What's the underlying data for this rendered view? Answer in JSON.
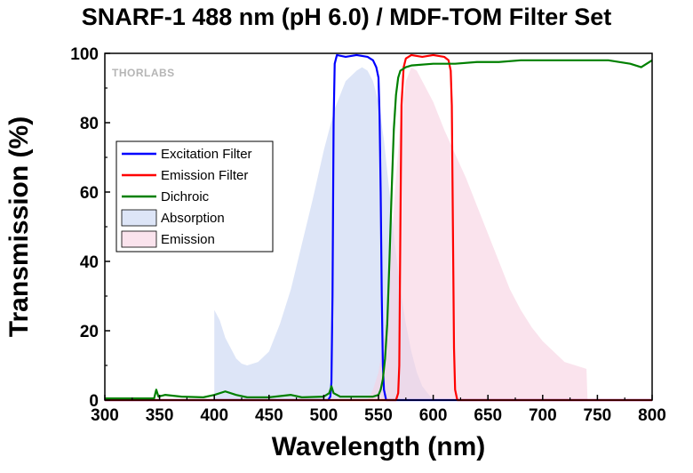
{
  "chart_data": {
    "type": "line",
    "title": "SNARF-1 488 nm (pH 6.0) / MDF-TOM Filter Set",
    "xlabel": "Wavelength (nm)",
    "ylabel": "Transmission (%)",
    "xlim": [
      300,
      800
    ],
    "ylim": [
      0,
      100
    ],
    "xticks": [
      300,
      350,
      400,
      450,
      500,
      550,
      600,
      650,
      700,
      750,
      800
    ],
    "yticks": [
      0,
      20,
      40,
      60,
      80,
      100
    ],
    "grid": false,
    "legend_position": "left-middle",
    "logo_text": "THORLABS",
    "series": [
      {
        "name": "Excitation Filter",
        "kind": "line",
        "color": "#0000ff",
        "points": [
          [
            300,
            0
          ],
          [
            504,
            0
          ],
          [
            506,
            1
          ],
          [
            507,
            5
          ],
          [
            508,
            30
          ],
          [
            509,
            80
          ],
          [
            510,
            97
          ],
          [
            512,
            99.5
          ],
          [
            520,
            99
          ],
          [
            530,
            99.5
          ],
          [
            540,
            99
          ],
          [
            545,
            98
          ],
          [
            548,
            96
          ],
          [
            550,
            93
          ],
          [
            551,
            82
          ],
          [
            552,
            60
          ],
          [
            553,
            30
          ],
          [
            554,
            10
          ],
          [
            555,
            3
          ],
          [
            557,
            0
          ],
          [
            800,
            0
          ]
        ]
      },
      {
        "name": "Emission Filter",
        "kind": "line",
        "color": "#ff0000",
        "points": [
          [
            300,
            0
          ],
          [
            566,
            0
          ],
          [
            568,
            2
          ],
          [
            569,
            10
          ],
          [
            570,
            50
          ],
          [
            571,
            85
          ],
          [
            573,
            96
          ],
          [
            575,
            98.5
          ],
          [
            580,
            99.5
          ],
          [
            590,
            99
          ],
          [
            600,
            99.5
          ],
          [
            610,
            99
          ],
          [
            614,
            98
          ],
          [
            616,
            95
          ],
          [
            617,
            85
          ],
          [
            618,
            50
          ],
          [
            619,
            15
          ],
          [
            620,
            3
          ],
          [
            622,
            0
          ],
          [
            800,
            0
          ]
        ]
      },
      {
        "name": "Dichroic",
        "kind": "line",
        "color": "#008000",
        "points": [
          [
            300,
            0.5
          ],
          [
            345,
            0.5
          ],
          [
            347,
            3
          ],
          [
            349,
            1
          ],
          [
            355,
            1.5
          ],
          [
            370,
            1
          ],
          [
            390,
            0.8
          ],
          [
            400,
            1.5
          ],
          [
            410,
            2.5
          ],
          [
            420,
            1.5
          ],
          [
            430,
            0.8
          ],
          [
            450,
            0.8
          ],
          [
            470,
            1.5
          ],
          [
            480,
            0.8
          ],
          [
            500,
            1
          ],
          [
            505,
            2
          ],
          [
            507,
            4
          ],
          [
            509,
            2
          ],
          [
            515,
            1
          ],
          [
            530,
            1
          ],
          [
            545,
            1
          ],
          [
            550,
            1.5
          ],
          [
            552,
            3
          ],
          [
            554,
            6
          ],
          [
            556,
            12
          ],
          [
            558,
            22
          ],
          [
            560,
            40
          ],
          [
            562,
            60
          ],
          [
            564,
            78
          ],
          [
            566,
            88
          ],
          [
            568,
            93
          ],
          [
            570,
            95
          ],
          [
            575,
            96
          ],
          [
            580,
            96.5
          ],
          [
            600,
            97
          ],
          [
            620,
            97
          ],
          [
            640,
            97.5
          ],
          [
            660,
            97.5
          ],
          [
            680,
            98
          ],
          [
            700,
            98
          ],
          [
            720,
            98
          ],
          [
            740,
            98
          ],
          [
            760,
            98
          ],
          [
            780,
            97
          ],
          [
            790,
            96
          ],
          [
            800,
            98
          ]
        ]
      },
      {
        "name": "Absorption",
        "kind": "area",
        "color": "#c7d4f2",
        "points": [
          [
            400,
            0
          ],
          [
            400,
            26
          ],
          [
            405,
            23
          ],
          [
            410,
            18
          ],
          [
            415,
            15
          ],
          [
            420,
            12
          ],
          [
            425,
            10.5
          ],
          [
            430,
            10
          ],
          [
            440,
            11
          ],
          [
            450,
            14
          ],
          [
            460,
            22
          ],
          [
            470,
            32
          ],
          [
            480,
            45
          ],
          [
            490,
            58
          ],
          [
            500,
            72
          ],
          [
            510,
            84
          ],
          [
            520,
            92
          ],
          [
            530,
            95
          ],
          [
            535,
            96
          ],
          [
            540,
            95
          ],
          [
            545,
            92
          ],
          [
            550,
            86
          ],
          [
            555,
            75
          ],
          [
            560,
            60
          ],
          [
            565,
            45
          ],
          [
            570,
            32
          ],
          [
            575,
            22
          ],
          [
            580,
            14
          ],
          [
            585,
            8
          ],
          [
            590,
            4
          ],
          [
            595,
            2
          ],
          [
            600,
            0
          ]
        ]
      },
      {
        "name": "Emission",
        "kind": "area",
        "color": "#f7d1e1",
        "points": [
          [
            540,
            0
          ],
          [
            545,
            3
          ],
          [
            550,
            8
          ],
          [
            555,
            18
          ],
          [
            560,
            35
          ],
          [
            565,
            60
          ],
          [
            570,
            80
          ],
          [
            575,
            92
          ],
          [
            580,
            96
          ],
          [
            585,
            95
          ],
          [
            590,
            92
          ],
          [
            600,
            86
          ],
          [
            610,
            78
          ],
          [
            620,
            71
          ],
          [
            630,
            64
          ],
          [
            640,
            56
          ],
          [
            650,
            48
          ],
          [
            660,
            40
          ],
          [
            670,
            32
          ],
          [
            680,
            26
          ],
          [
            690,
            21
          ],
          [
            700,
            17
          ],
          [
            710,
            14
          ],
          [
            720,
            11
          ],
          [
            730,
            10
          ],
          [
            740,
            9
          ],
          [
            741,
            0
          ]
        ]
      }
    ]
  }
}
